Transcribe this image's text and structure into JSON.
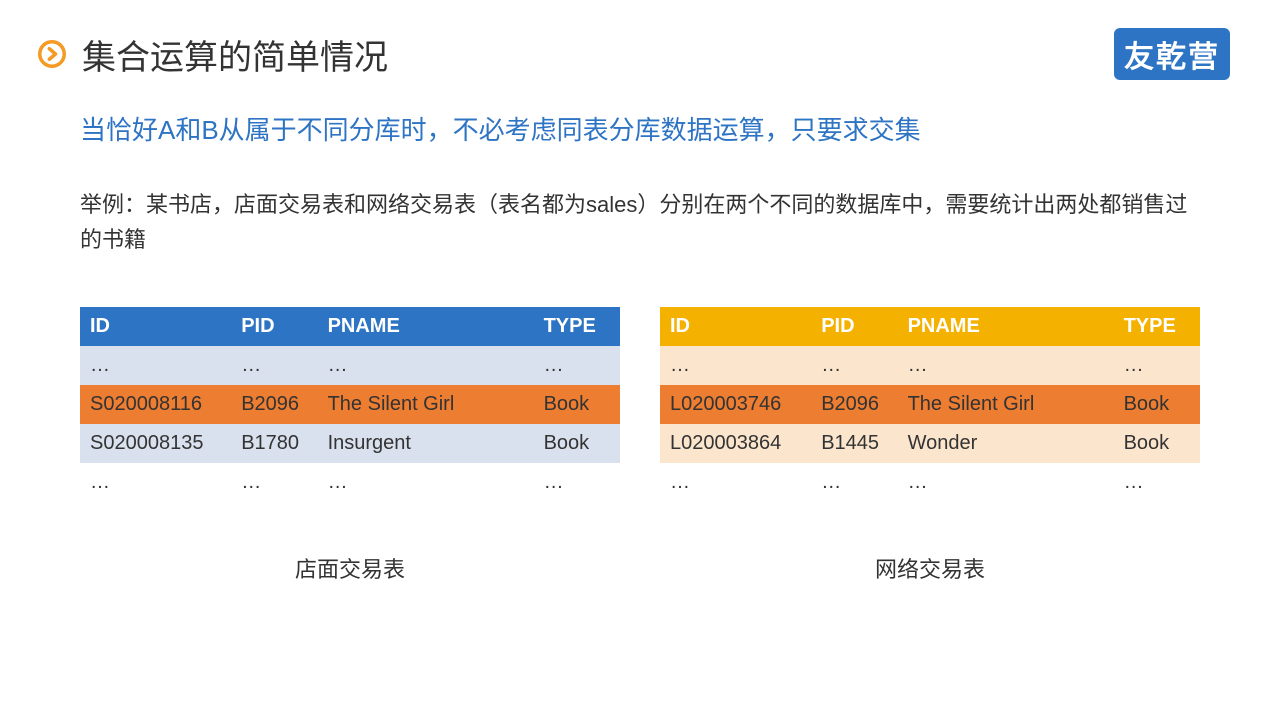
{
  "header": {
    "title": "集合运算的简单情况",
    "brand": "友乾营",
    "icon_colors": {
      "outer": "#f59a23",
      "inner": "#ffffff"
    }
  },
  "subtitle": "当恰好A和B从属于不同分库时，不必考虑同表分库数据运算，只要求交集",
  "description": "举例：某书店，店面交易表和网络交易表（表名都为sales）分别在两个不同的数据库中，需要统计出两处都销售过的书籍",
  "tables": {
    "left": {
      "caption": "店面交易表",
      "columns": [
        "ID",
        "PID",
        "PNAME",
        "TYPE"
      ],
      "rows": [
        [
          "…",
          "…",
          "…",
          "…"
        ],
        [
          "S020008116",
          "B2096",
          "The Silent Girl",
          "Book"
        ],
        [
          "S020008135",
          "B1780",
          "Insurgent",
          "Book"
        ],
        [
          "…",
          "…",
          "…",
          "…"
        ]
      ],
      "header_bg": "#2e74c4",
      "row_bgs": [
        "#d9e1ee",
        "#ed7d31",
        "#d9e1ee",
        "#ffffff"
      ],
      "row_fgs": [
        "#333333",
        "#333333",
        "#333333",
        "#333333"
      ]
    },
    "right": {
      "caption": "网络交易表",
      "columns": [
        "ID",
        "PID",
        "PNAME",
        "TYPE"
      ],
      "rows": [
        [
          "…",
          "…",
          "…",
          "…"
        ],
        [
          "L020003746",
          "B2096",
          "The Silent Girl",
          "Book"
        ],
        [
          "L020003864",
          "B1445",
          "Wonder",
          "Book"
        ],
        [
          "…",
          "…",
          "…",
          "…"
        ]
      ],
      "header_bg": "#f5b100",
      "row_bgs": [
        "#fbe6cd",
        "#ed7d31",
        "#fbe6cd",
        "#ffffff"
      ],
      "row_fgs": [
        "#333333",
        "#333333",
        "#333333",
        "#333333"
      ]
    }
  },
  "colors": {
    "brand_bg": "#2e74c4",
    "title_color": "#333333",
    "subtitle_color": "#2e74c4"
  }
}
